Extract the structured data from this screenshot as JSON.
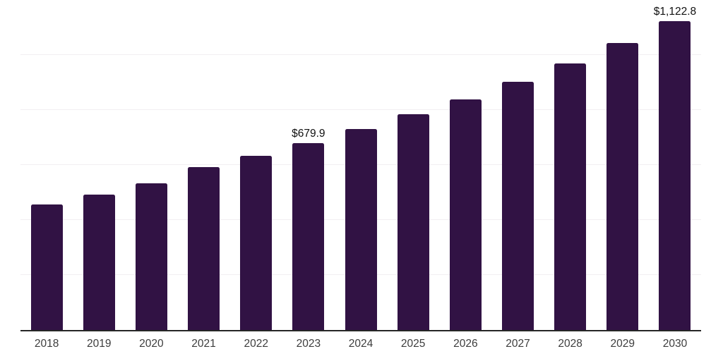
{
  "chart_data": {
    "type": "bar",
    "categories": [
      "2018",
      "2019",
      "2020",
      "2021",
      "2022",
      "2023",
      "2024",
      "2025",
      "2026",
      "2027",
      "2028",
      "2029",
      "2030"
    ],
    "values": [
      457.6,
      493.4,
      534.3,
      593.1,
      634.0,
      679.9,
      731.2,
      784.8,
      838.5,
      902.4,
      968.9,
      1043.1,
      1122.8
    ],
    "labeled_points": [
      {
        "category": "2023",
        "label": "$679.9"
      },
      {
        "category": "2030",
        "label": "$1,122.8"
      }
    ],
    "title": "",
    "xlabel": "",
    "ylabel": "",
    "ylim": [
      0,
      1200
    ],
    "gridline_values": [
      200,
      400,
      600,
      800,
      1000,
      1200
    ],
    "grid": "horizontal",
    "legend_position": "none",
    "colors": {
      "bar": "#311244",
      "axis_line": "#262626",
      "gridline": "#f1eff2",
      "tick_label": "#3d3d3d",
      "data_label": "#111111",
      "background": "#ffffff"
    }
  }
}
